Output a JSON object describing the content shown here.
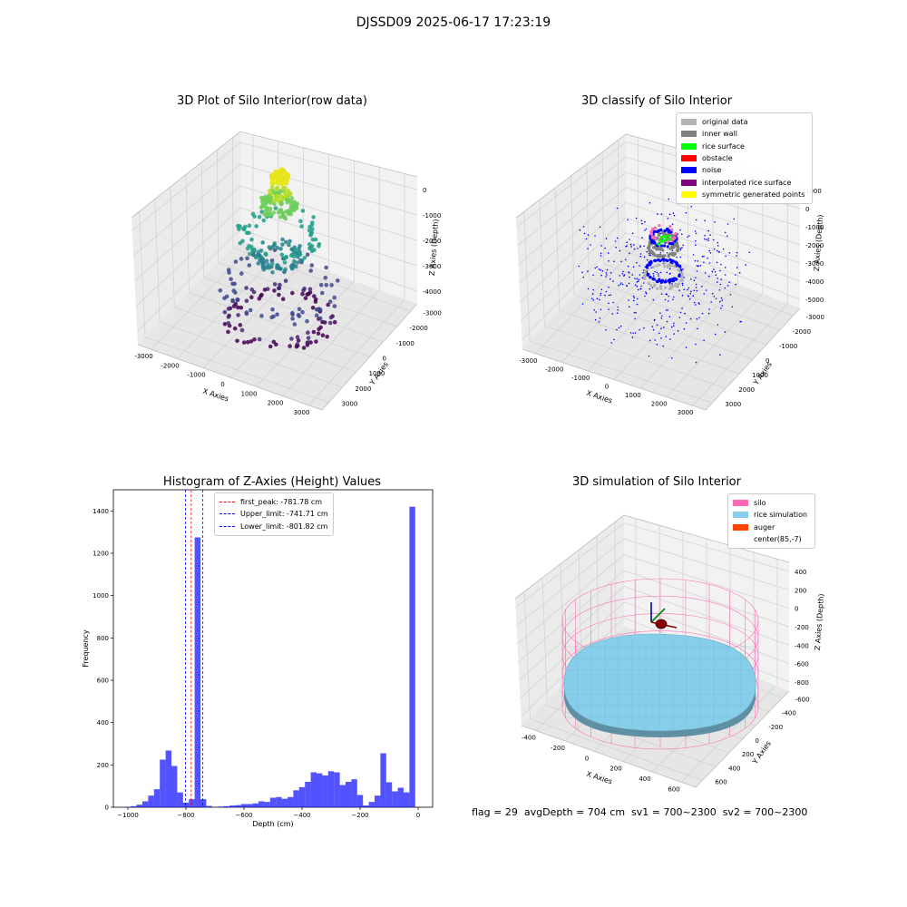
{
  "suptitle": "DJSSD09 2025-06-17 17:23:19",
  "footer": "flag = 29  avgDepth = 704 cm  sv1 = 700~2300  sv2 = 700~2300",
  "chart_data": [
    {
      "type": "scatter",
      "title": "3D Plot of Silo Interior(row data)",
      "xlabel": "X Axies",
      "ylabel": "Y Axies",
      "zlabel": "Z Axies (Depth)",
      "x_ticks": [
        "-3000",
        "-2000",
        "-1000",
        "0",
        "1000",
        "2000",
        "3000"
      ],
      "y_ticks": [
        "-3000",
        "-2000",
        "-1000",
        "0",
        "1000",
        "2000",
        "3000"
      ],
      "z_ticks": [
        "0",
        "-1000",
        "-2000",
        "-3000",
        "-4000"
      ],
      "xlim": [
        -3500,
        3500
      ],
      "ylim": [
        -3500,
        3500
      ],
      "zlim": [
        -4500,
        0
      ],
      "colormap": "viridis",
      "rings": [
        {
          "radius": 350,
          "z": -700,
          "points": 60
        },
        {
          "radius": 550,
          "z": -1000,
          "points": 80
        },
        {
          "radius": 1300,
          "z": -1900,
          "points": 70
        },
        {
          "radius": 700,
          "z": -2500,
          "points": 70
        },
        {
          "radius": 1800,
          "z": -3400,
          "points": 60
        },
        {
          "radius": 1650,
          "z": -4300,
          "points": 90
        }
      ]
    },
    {
      "type": "scatter",
      "title": "3D classify of Silo Interior",
      "xlabel": "X Axies",
      "ylabel": "Y Axies",
      "zlabel": "Z Axies (Depth)",
      "x_ticks": [
        "-3000",
        "-2000",
        "-1000",
        "0",
        "1000",
        "2000",
        "3000"
      ],
      "y_ticks": [
        "-3000",
        "-2000",
        "-1000",
        "0",
        "1000",
        "2000",
        "3000"
      ],
      "z_ticks": [
        "1000",
        "0",
        "-1000",
        "-2000",
        "-3000",
        "-4000",
        "-5000"
      ],
      "xlim": [
        -3500,
        3500
      ],
      "ylim": [
        -3500,
        3500
      ],
      "zlim": [
        -5500,
        1500
      ],
      "legend": [
        {
          "label": "original data",
          "color": "#b3b3b3"
        },
        {
          "label": "inner wall",
          "color": "#808080"
        },
        {
          "label": "rice surface",
          "color": "#00ff00"
        },
        {
          "label": "obstacle",
          "color": "#ff0000"
        },
        {
          "label": "noise",
          "color": "#0000ff"
        },
        {
          "label": "interpolated rice surface",
          "color": "#800080"
        },
        {
          "label": "symmetric generated points",
          "color": "#ffff00"
        }
      ]
    },
    {
      "type": "bar",
      "title": "Histogram of Z-Axies (Height) Values",
      "xlabel": "Depth (cm)",
      "ylabel": "Frequency",
      "xlim": [
        -1050,
        50
      ],
      "ylim": [
        0,
        1500
      ],
      "x_ticks": [
        -1000,
        -800,
        -600,
        -400,
        -200,
        0
      ],
      "y_ticks": [
        0,
        200,
        400,
        600,
        800,
        1000,
        1200,
        1400
      ],
      "bin_width": 20,
      "bin_starts": [
        -1010,
        -990,
        -970,
        -950,
        -930,
        -910,
        -890,
        -870,
        -850,
        -830,
        -810,
        -790,
        -770,
        -750,
        -730,
        -710,
        -690,
        -670,
        -650,
        -630,
        -610,
        -590,
        -570,
        -550,
        -530,
        -510,
        -490,
        -470,
        -450,
        -430,
        -410,
        -390,
        -370,
        -350,
        -330,
        -310,
        -290,
        -270,
        -250,
        -230,
        -210,
        -190,
        -170,
        -150,
        -130,
        -110,
        -90,
        -70,
        -50,
        -30,
        -10
      ],
      "counts": [
        2,
        5,
        12,
        28,
        55,
        85,
        225,
        268,
        195,
        70,
        22,
        38,
        1275,
        38,
        6,
        0,
        3,
        5,
        8,
        10,
        15,
        15,
        18,
        28,
        25,
        45,
        48,
        40,
        48,
        80,
        95,
        120,
        165,
        160,
        150,
        170,
        165,
        105,
        120,
        132,
        58,
        8,
        25,
        55,
        255,
        118,
        75,
        92,
        70,
        1420,
        0
      ],
      "color": "#0000ff",
      "lines": [
        {
          "label": "first_peak: -781.78 cm",
          "x": -781.78,
          "color": "#ff0000"
        },
        {
          "label": "Upper_limit: -741.71 cm",
          "x": -741.71,
          "color": "#0000ff"
        },
        {
          "label": "Lower_limit: -801.82 cm",
          "x": -801.82,
          "color": "#0000ff"
        }
      ]
    },
    {
      "type": "scatter",
      "title": "3D simulation of Silo Interior",
      "xlabel": "X Axies",
      "ylabel": "Y Axies",
      "zlabel": "Z Axies (Depth)",
      "x_ticks": [
        "-400",
        "-200",
        "0",
        "200",
        "400",
        "600"
      ],
      "y_ticks": [
        "-600",
        "-400",
        "-200",
        "0",
        "200",
        "400",
        "600"
      ],
      "z_ticks": [
        "400",
        "200",
        "0",
        "-200",
        "-400",
        "-600",
        "-800"
      ],
      "legend": [
        {
          "label": "silo",
          "color": "#ff69b4"
        },
        {
          "label": "rice simulation",
          "color": "#87ceeb"
        },
        {
          "label": "auger",
          "color": "#ff4500"
        },
        {
          "label": "center(85,-7)",
          "color": ""
        }
      ]
    }
  ]
}
